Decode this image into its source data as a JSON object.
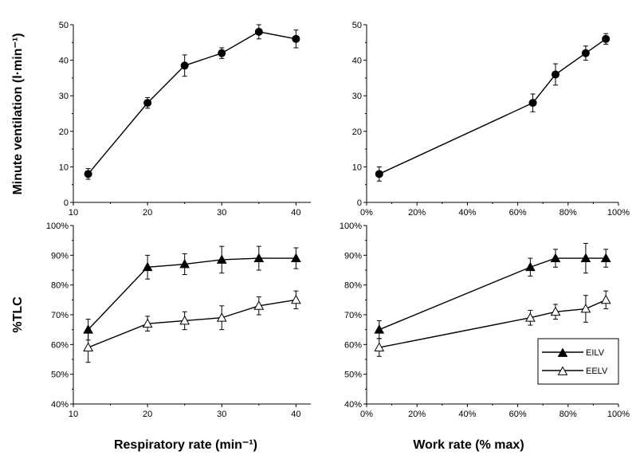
{
  "figure": {
    "ylabel_top": "Minute ventilation (l·min⁻¹)",
    "ylabel_bottom": "%TLC",
    "xlabel_left": "Respiratory rate (min⁻¹)",
    "xlabel_right": "Work rate (% max)"
  },
  "chart_data": [
    {
      "type": "line",
      "panel": "top-left",
      "ylabel": "Minute ventilation (l·min⁻¹)",
      "xlim": [
        10,
        42
      ],
      "ylim": [
        0,
        50
      ],
      "xticks": [
        10,
        20,
        30,
        40
      ],
      "xtick_labels": [
        "10",
        "20",
        "30",
        "40"
      ],
      "yticks": [
        0,
        10,
        20,
        30,
        40,
        50
      ],
      "ytick_labels": [
        "0",
        "10",
        "20",
        "30",
        "40",
        "50"
      ],
      "series": [
        {
          "marker": "filled-circle",
          "x": [
            12,
            20,
            25,
            30,
            35,
            40
          ],
          "y": [
            8,
            28,
            38.5,
            42,
            48,
            46
          ],
          "err": [
            1.5,
            1.5,
            3,
            1.5,
            2,
            2.5
          ]
        }
      ]
    },
    {
      "type": "line",
      "panel": "top-right",
      "xlim": [
        0,
        100
      ],
      "ylim": [
        0,
        50
      ],
      "xticks": [
        0,
        20,
        40,
        60,
        80,
        100
      ],
      "xtick_labels": [
        "0%",
        "20%",
        "40%",
        "60%",
        "80%",
        "100%"
      ],
      "yticks": [
        0,
        10,
        20,
        30,
        40,
        50
      ],
      "ytick_labels": [
        "0",
        "10",
        "20",
        "30",
        "40",
        "50"
      ],
      "series": [
        {
          "marker": "filled-circle",
          "x": [
            5,
            66,
            75,
            87,
            95
          ],
          "y": [
            8,
            28,
            36,
            42,
            46
          ],
          "err": [
            2,
            2.5,
            3,
            2,
            1.5
          ]
        }
      ]
    },
    {
      "type": "line",
      "panel": "bottom-left",
      "xlabel": "Respiratory rate (min⁻¹)",
      "ylabel": "%TLC",
      "xlim": [
        10,
        42
      ],
      "ylim": [
        40,
        100
      ],
      "xticks": [
        10,
        20,
        30,
        40
      ],
      "xtick_labels": [
        "10",
        "20",
        "30",
        "40"
      ],
      "yticks": [
        40,
        50,
        60,
        70,
        80,
        90,
        100
      ],
      "ytick_labels": [
        "40%",
        "50%",
        "60%",
        "70%",
        "80%",
        "90%",
        "100%"
      ],
      "series": [
        {
          "name": "EILV",
          "marker": "filled-triangle",
          "x": [
            12,
            20,
            25,
            30,
            35,
            40
          ],
          "y": [
            65,
            86,
            87,
            88.5,
            89,
            89
          ],
          "err": [
            3.5,
            4,
            3.5,
            4.5,
            4,
            3.5
          ]
        },
        {
          "name": "EELV",
          "marker": "open-triangle",
          "x": [
            12,
            20,
            25,
            30,
            35,
            40
          ],
          "y": [
            59,
            67,
            68,
            69,
            73,
            75
          ],
          "err": [
            5,
            2.5,
            3,
            4,
            3,
            3
          ]
        }
      ]
    },
    {
      "type": "line",
      "panel": "bottom-right",
      "xlabel": "Work rate (% max)",
      "xlim": [
        0,
        100
      ],
      "ylim": [
        40,
        100
      ],
      "xticks": [
        0,
        20,
        40,
        60,
        80,
        100
      ],
      "xtick_labels": [
        "0%",
        "20%",
        "40%",
        "60%",
        "80%",
        "100%"
      ],
      "yticks": [
        40,
        50,
        60,
        70,
        80,
        90,
        100
      ],
      "ytick_labels": [
        "40%",
        "50%",
        "60%",
        "70%",
        "80%",
        "90%",
        "100%"
      ],
      "legend": {
        "position": "bottom-right",
        "entries": [
          "EILV",
          "EELV"
        ]
      },
      "series": [
        {
          "name": "EILV",
          "marker": "filled-triangle",
          "x": [
            5,
            65,
            75,
            87,
            95
          ],
          "y": [
            65,
            86,
            89,
            89,
            89
          ],
          "err": [
            3,
            3,
            3,
            5,
            3
          ]
        },
        {
          "name": "EELV",
          "marker": "open-triangle",
          "x": [
            5,
            65,
            75,
            87,
            95
          ],
          "y": [
            59,
            69,
            71,
            72,
            75
          ],
          "err": [
            3,
            2.5,
            2.5,
            4.5,
            3
          ]
        }
      ]
    }
  ]
}
